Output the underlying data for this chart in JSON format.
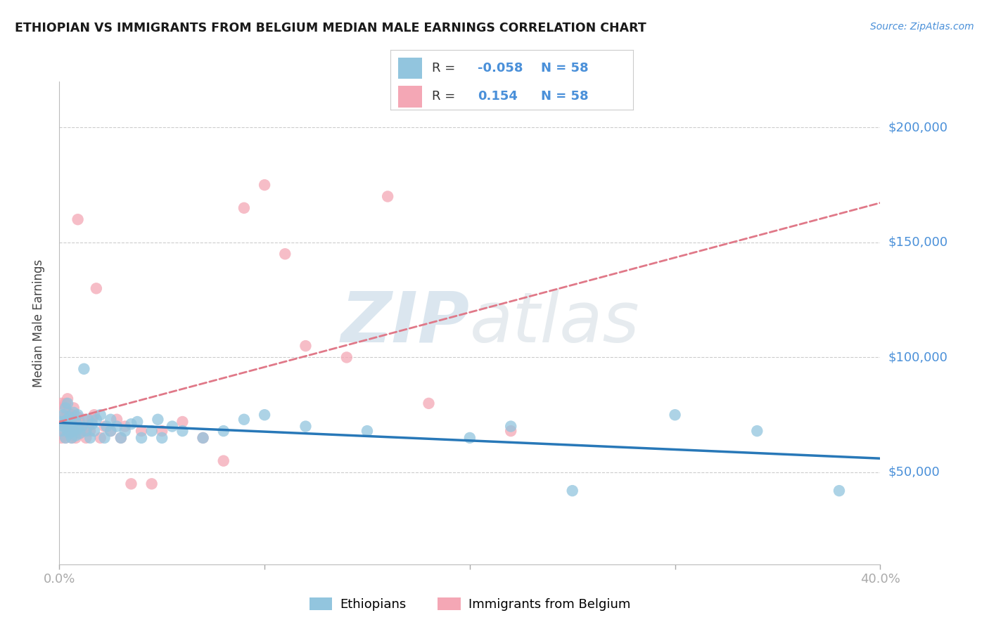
{
  "title": "ETHIOPIAN VS IMMIGRANTS FROM BELGIUM MEDIAN MALE EARNINGS CORRELATION CHART",
  "source": "Source: ZipAtlas.com",
  "ylabel": "Median Male Earnings",
  "xlim": [
    0.0,
    0.4
  ],
  "ylim": [
    10000,
    220000
  ],
  "yticks": [
    50000,
    100000,
    150000,
    200000
  ],
  "ytick_labels": [
    "$50,000",
    "$100,000",
    "$150,000",
    "$200,000"
  ],
  "xticks": [
    0.0,
    0.1,
    0.2,
    0.3,
    0.4
  ],
  "xtick_labels": [
    "0.0%",
    "",
    "",
    "",
    "40.0%"
  ],
  "legend_r_blue": "-0.058",
  "legend_r_pink": "0.154",
  "legend_n": "58",
  "blue_color": "#92c5de",
  "pink_color": "#f4a7b5",
  "blue_line_color": "#2878b8",
  "pink_line_color": "#e07888",
  "title_color": "#1a1a1a",
  "axis_color": "#4a90d9",
  "legend_text_color": "#333333",
  "watermark_text": "ZIPatlas",
  "blue_scatter_x": [
    0.001,
    0.001,
    0.002,
    0.002,
    0.003,
    0.003,
    0.003,
    0.004,
    0.004,
    0.004,
    0.005,
    0.005,
    0.005,
    0.006,
    0.006,
    0.007,
    0.007,
    0.008,
    0.008,
    0.009,
    0.009,
    0.01,
    0.011,
    0.012,
    0.013,
    0.014,
    0.015,
    0.016,
    0.017,
    0.018,
    0.02,
    0.022,
    0.023,
    0.025,
    0.025,
    0.028,
    0.03,
    0.032,
    0.035,
    0.038,
    0.04,
    0.045,
    0.048,
    0.05,
    0.055,
    0.06,
    0.07,
    0.08,
    0.09,
    0.1,
    0.12,
    0.15,
    0.2,
    0.22,
    0.25,
    0.3,
    0.34,
    0.38
  ],
  "blue_scatter_y": [
    72000,
    68000,
    75000,
    70000,
    65000,
    72000,
    78000,
    68000,
    73000,
    80000,
    67000,
    70000,
    74000,
    65000,
    71000,
    68000,
    76000,
    66000,
    72000,
    69000,
    75000,
    67000,
    70000,
    95000,
    68000,
    73000,
    65000,
    71000,
    68000,
    73000,
    75000,
    65000,
    70000,
    68000,
    73000,
    70000,
    65000,
    68000,
    71000,
    72000,
    65000,
    68000,
    73000,
    65000,
    70000,
    68000,
    65000,
    68000,
    73000,
    75000,
    70000,
    68000,
    65000,
    70000,
    42000,
    75000,
    68000,
    42000
  ],
  "pink_scatter_x": [
    0.001,
    0.001,
    0.001,
    0.002,
    0.002,
    0.002,
    0.003,
    0.003,
    0.003,
    0.003,
    0.004,
    0.004,
    0.004,
    0.004,
    0.005,
    0.005,
    0.005,
    0.006,
    0.006,
    0.006,
    0.007,
    0.007,
    0.007,
    0.008,
    0.008,
    0.009,
    0.009,
    0.01,
    0.01,
    0.011,
    0.012,
    0.013,
    0.014,
    0.015,
    0.016,
    0.017,
    0.018,
    0.02,
    0.022,
    0.025,
    0.028,
    0.03,
    0.032,
    0.035,
    0.04,
    0.045,
    0.05,
    0.06,
    0.07,
    0.08,
    0.09,
    0.1,
    0.11,
    0.12,
    0.14,
    0.16,
    0.18,
    0.22
  ],
  "pink_scatter_y": [
    65000,
    72000,
    80000,
    68000,
    74000,
    78000,
    65000,
    70000,
    74000,
    80000,
    68000,
    72000,
    76000,
    82000,
    67000,
    70000,
    74000,
    65000,
    70000,
    75000,
    68000,
    73000,
    78000,
    65000,
    71000,
    74000,
    160000,
    67000,
    72000,
    68000,
    73000,
    65000,
    70000,
    68000,
    73000,
    75000,
    130000,
    65000,
    70000,
    68000,
    73000,
    65000,
    70000,
    45000,
    68000,
    45000,
    68000,
    72000,
    65000,
    55000,
    165000,
    175000,
    145000,
    105000,
    100000,
    170000,
    80000,
    68000
  ]
}
